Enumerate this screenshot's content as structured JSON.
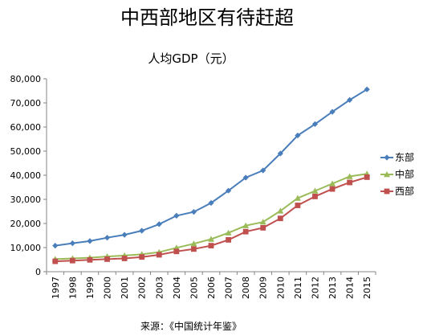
{
  "chart_data": {
    "type": "line",
    "title": "中西部地区有待赶超",
    "subtitle": "人均GDP（元）",
    "source": "来源：《中国统计年鉴》",
    "xlabel": "",
    "ylabel": "",
    "ylim": [
      0,
      80000
    ],
    "yticks": [
      "0",
      "10,000",
      "20,000",
      "30,000",
      "40,000",
      "50,000",
      "60,000",
      "70,000",
      "80,000"
    ],
    "grid": false,
    "legend_position": "right",
    "categories": [
      "1997",
      "1998",
      "1999",
      "2000",
      "2001",
      "2002",
      "2003",
      "2004",
      "2005",
      "2006",
      "2007",
      "2008",
      "2009",
      "2010",
      "2011",
      "2012",
      "2013",
      "2014",
      "2015"
    ],
    "series": [
      {
        "name": "东部",
        "color": "#4a7ebb",
        "marker": "diamond",
        "values": [
          10800,
          11800,
          12700,
          14100,
          15300,
          17000,
          19700,
          23200,
          24800,
          28500,
          33600,
          39000,
          42000,
          49000,
          56500,
          61200,
          66300,
          71200,
          75600
        ]
      },
      {
        "name": "中部",
        "color": "#9bbb59",
        "marker": "triangle",
        "values": [
          5200,
          5500,
          5800,
          6300,
          6700,
          7200,
          8100,
          9900,
          11600,
          13500,
          16100,
          19100,
          20600,
          25200,
          30500,
          33500,
          36500,
          39500,
          40600
        ]
      },
      {
        "name": "西部",
        "color": "#c0504d",
        "marker": "square",
        "values": [
          4300,
          4600,
          4900,
          5200,
          5500,
          6100,
          7000,
          8400,
          9400,
          10800,
          13200,
          16600,
          18200,
          22100,
          27500,
          31200,
          34300,
          37000,
          39200
        ]
      }
    ]
  }
}
